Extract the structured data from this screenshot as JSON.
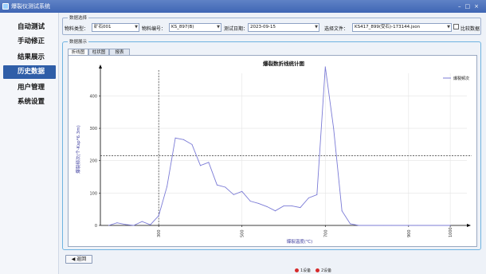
{
  "window": {
    "title": "爆裂仪测试系统"
  },
  "sidebar": {
    "items": [
      {
        "label": "自动测试"
      },
      {
        "label": "手动修正"
      },
      {
        "label": "结果展示"
      },
      {
        "label": "历史数据"
      },
      {
        "label": "用户管理"
      },
      {
        "label": "系统设置"
      }
    ],
    "active_index": 3
  },
  "selection": {
    "title": "数据选择",
    "material_type_label": "物料类型：",
    "material_type_value": "矿石001",
    "material_code_label": "物料编号：",
    "material_code_value": "KS_897(B)",
    "test_date_label": "测试日期：",
    "test_date_value": "2023-09-15",
    "file_label": "选择文件：",
    "file_value": "KS417_899(受石)-173144.json",
    "compare_label": "比较数据"
  },
  "display": {
    "title": "数据展示",
    "tabs": [
      {
        "label": "折线图"
      },
      {
        "label": "柱状图"
      },
      {
        "label": "报表"
      }
    ],
    "active_tab": 0
  },
  "chart_data": {
    "type": "line",
    "title": "爆裂数折线统计图",
    "xlabel": "爆裂温度(℃)",
    "ylabel": "爆裂频次(个-Ksp*6.3m)",
    "xlim": [
      160,
      1040
    ],
    "ylim": [
      0,
      470
    ],
    "xticks": [
      300,
      500,
      700,
      900,
      1000
    ],
    "yticks": [
      0,
      100,
      200,
      300,
      400
    ],
    "grid": true,
    "legend_position": "top-right",
    "crosshair": {
      "x": 300,
      "y": 215
    },
    "series": [
      {
        "name": "爆裂频次",
        "color": "#7b7bd6",
        "x": [
          180,
          200,
          220,
          240,
          260,
          280,
          300,
          320,
          340,
          360,
          380,
          400,
          420,
          440,
          460,
          480,
          500,
          520,
          540,
          560,
          580,
          600,
          620,
          640,
          660,
          680,
          700,
          720,
          740,
          760,
          780,
          800,
          820,
          840,
          860,
          880,
          900,
          920,
          940,
          960,
          980,
          1000
        ],
        "values": [
          0,
          8,
          3,
          0,
          12,
          2,
          30,
          120,
          270,
          265,
          250,
          185,
          195,
          125,
          118,
          95,
          105,
          75,
          68,
          58,
          45,
          60,
          60,
          55,
          85,
          95,
          490,
          300,
          45,
          5,
          0,
          0,
          0,
          0,
          0,
          0,
          0,
          0,
          0,
          0,
          0,
          0
        ]
      }
    ]
  },
  "footer": {
    "back_label": "返回"
  },
  "status": [
    {
      "label": "1设备"
    },
    {
      "label": "2设备"
    }
  ]
}
